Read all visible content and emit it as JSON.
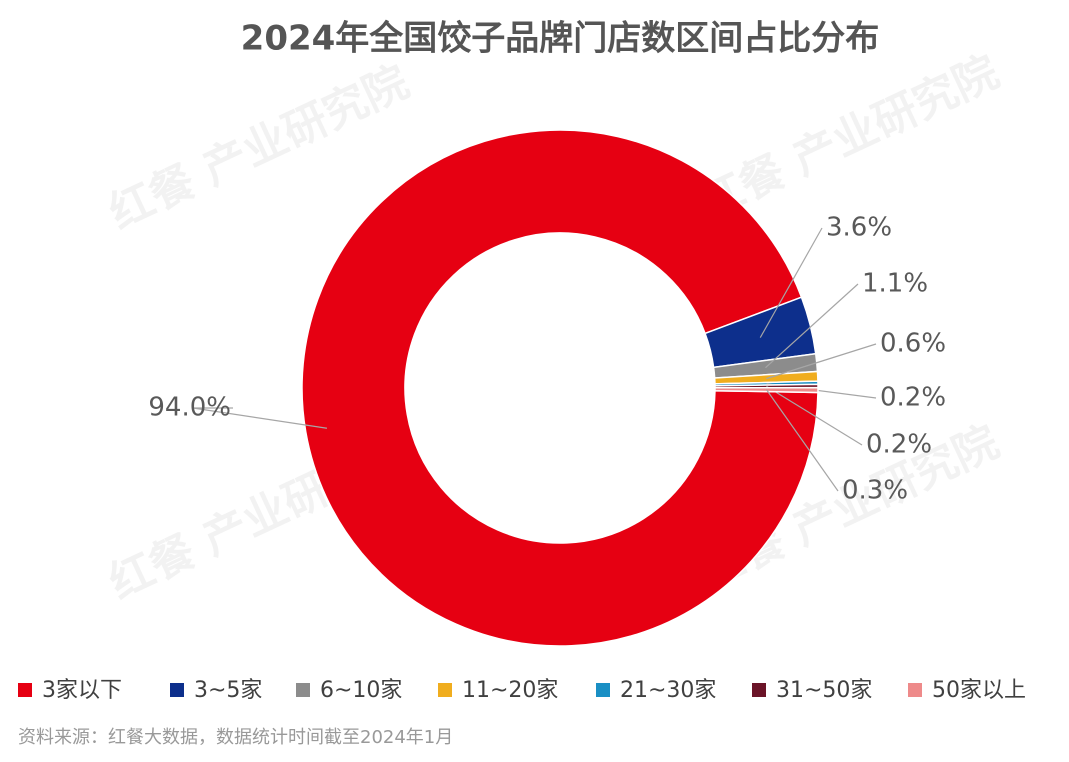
{
  "chart_data": {
    "type": "donut",
    "title": "2024年全国饺子品牌门店数区间占比分布",
    "categories": [
      "3家以下",
      "3~5家",
      "6~10家",
      "11~20家",
      "21~30家",
      "31~50家",
      "50家以上"
    ],
    "values": [
      94.0,
      3.6,
      1.1,
      0.6,
      0.2,
      0.2,
      0.3
    ],
    "value_labels": [
      "94.0%",
      "3.6%",
      "1.1%",
      "0.6%",
      "0.2%",
      "0.2%",
      "0.3%"
    ],
    "colors": [
      "#e60012",
      "#0d2f8c",
      "#8c8c8c",
      "#f0ad1e",
      "#1a8fc4",
      "#6b1428",
      "#ee8a8a"
    ],
    "source": "资料来源：红餐大数据，数据统计时间截至2024年1月",
    "watermark": "红餐 产业研究院"
  }
}
